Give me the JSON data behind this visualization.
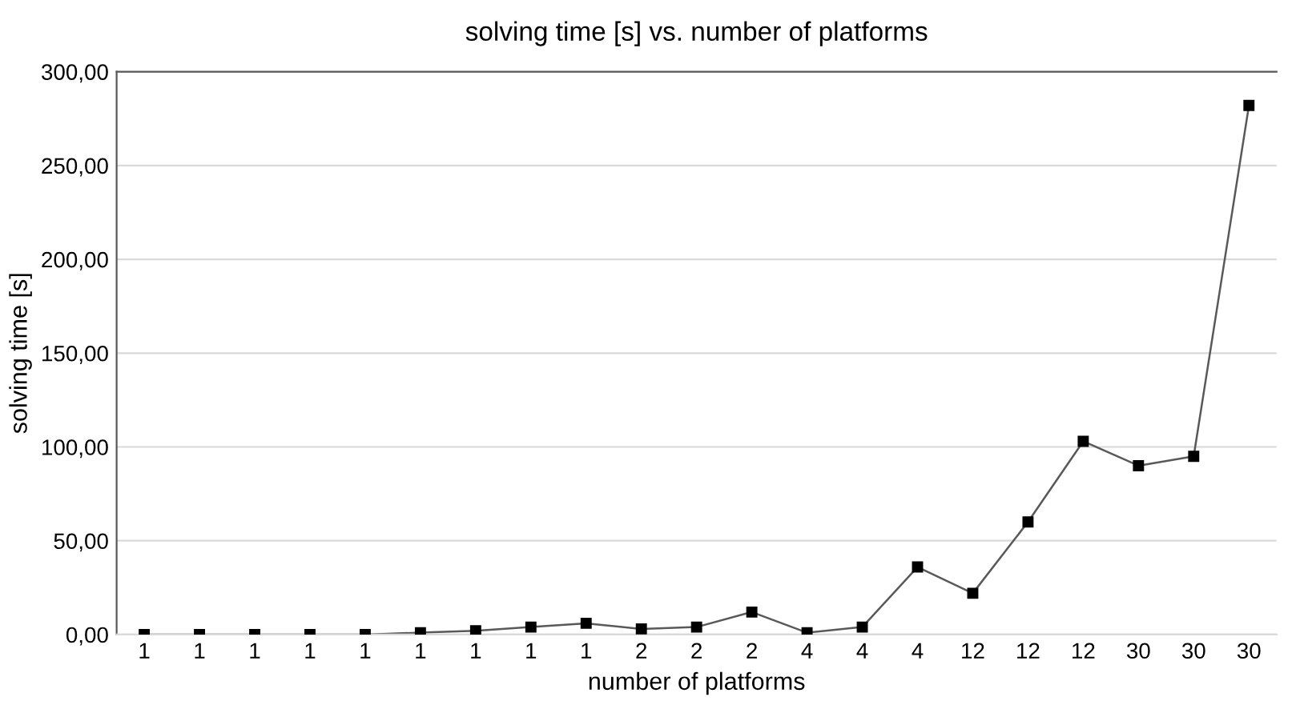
{
  "chart_data": {
    "type": "line",
    "title": "solving time [s] vs. number of platforms",
    "xlabel": "number of platforms",
    "ylabel": "solving time [s]",
    "categories": [
      "1",
      "1",
      "1",
      "1",
      "1",
      "1",
      "1",
      "1",
      "1",
      "2",
      "2",
      "2",
      "4",
      "4",
      "4",
      "12",
      "12",
      "12",
      "30",
      "30",
      "30"
    ],
    "series": [
      {
        "color": "#000000",
        "values": [
          0,
          0,
          0,
          0,
          0,
          1,
          2,
          4,
          6,
          3,
          4,
          12,
          1,
          4,
          36,
          22,
          60,
          103,
          90,
          95,
          282
        ]
      }
    ],
    "ylim": [
      0,
      300
    ],
    "yticks": [
      {
        "value": 0,
        "label": "0,00"
      },
      {
        "value": 50,
        "label": "50,00"
      },
      {
        "value": 100,
        "label": "100,00"
      },
      {
        "value": 150,
        "label": "150,00"
      },
      {
        "value": 200,
        "label": "200,00"
      },
      {
        "value": 250,
        "label": "250,00"
      },
      {
        "value": 300,
        "label": "300,00"
      }
    ],
    "grid": "y",
    "marker": "square",
    "line_style": "solid"
  }
}
